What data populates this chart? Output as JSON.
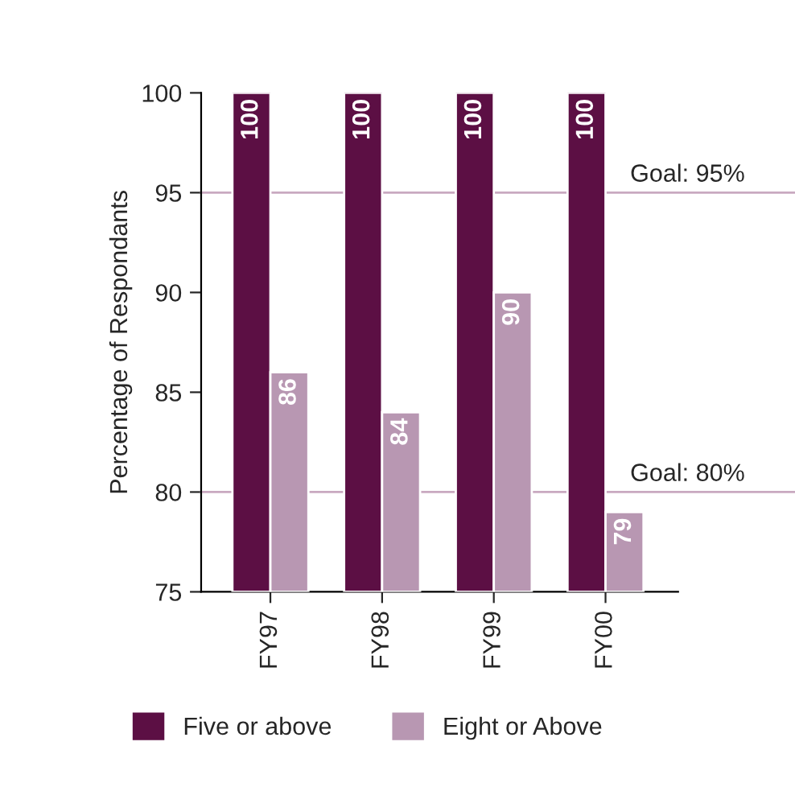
{
  "chart_data": {
    "type": "bar",
    "ylabel": "Percentage of Respondants",
    "categories": [
      "FY97",
      "FY98",
      "FY99",
      "FY00"
    ],
    "series": [
      {
        "name": "Five or above",
        "color": "#5c0f44",
        "values": [
          100,
          100,
          100,
          100
        ]
      },
      {
        "name": "Eight or Above",
        "color": "#b897b2",
        "values": [
          86,
          84,
          90,
          79
        ]
      }
    ],
    "ylim": [
      75,
      100
    ],
    "yticks": [
      75,
      80,
      85,
      90,
      95,
      100
    ],
    "data_labels": true,
    "legend": "bottom",
    "grid": false,
    "ref_lines": [
      {
        "axis": "y",
        "value": 95,
        "label": "Goal: 95%",
        "color": "#c9a9c0"
      },
      {
        "axis": "y",
        "value": 80,
        "label": "Goal: 80%",
        "color": "#c9a9c0"
      }
    ]
  }
}
